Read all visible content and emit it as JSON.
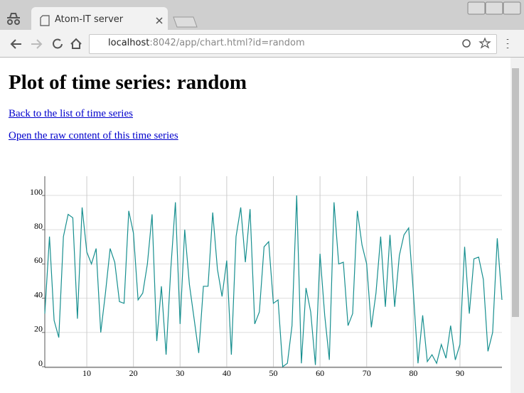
{
  "browser": {
    "tab_title": "Atom-IT server",
    "url_host": "localhost",
    "url_rest": ":8042/app/chart.html?id=random"
  },
  "page": {
    "heading": "Plot of time series: random",
    "links": [
      "Back to the list of time series",
      "Open the raw content of this time series"
    ]
  },
  "chart_data": {
    "type": "line",
    "x": [
      1,
      2,
      3,
      4,
      5,
      6,
      7,
      8,
      9,
      10,
      11,
      12,
      13,
      14,
      15,
      16,
      17,
      18,
      19,
      20,
      21,
      22,
      23,
      24,
      25,
      26,
      27,
      28,
      29,
      30,
      31,
      32,
      33,
      34,
      35,
      36,
      37,
      38,
      39,
      40,
      41,
      42,
      43,
      44,
      45,
      46,
      47,
      48,
      49,
      50,
      51,
      52,
      53,
      54,
      55,
      56,
      57,
      58,
      59,
      60,
      61,
      62,
      63,
      64,
      65,
      66,
      67,
      68,
      69,
      70,
      71,
      72,
      73,
      74,
      75,
      76,
      77,
      78,
      79,
      80,
      81,
      82,
      83,
      84,
      85,
      86,
      87,
      88,
      89,
      90,
      91,
      92,
      93,
      94,
      95,
      96,
      97,
      98,
      99
    ],
    "values": [
      31,
      76,
      27,
      17,
      76,
      89,
      87,
      28,
      93,
      67,
      60,
      69,
      20,
      43,
      69,
      61,
      38,
      37,
      91,
      78,
      39,
      43,
      60,
      89,
      15,
      47,
      7,
      57,
      96,
      25,
      80,
      48,
      28,
      8,
      47,
      47,
      90,
      57,
      41,
      62,
      7,
      76,
      93,
      61,
      92,
      25,
      32,
      70,
      73,
      37,
      39,
      0,
      2,
      24,
      100,
      2,
      46,
      32,
      1,
      66,
      30,
      4,
      96,
      60,
      61,
      24,
      31,
      91,
      71,
      60,
      23,
      43,
      76,
      35,
      77,
      35,
      65,
      77,
      81,
      44,
      2,
      30,
      3,
      7,
      2,
      13,
      5,
      24,
      4,
      13,
      70,
      31,
      63,
      64,
      51,
      9,
      20,
      75,
      39
    ],
    "color": "#178f8f",
    "xlim": [
      1,
      99
    ],
    "xticks": [
      10,
      20,
      30,
      40,
      50,
      60,
      70,
      80,
      90
    ],
    "ylim": [
      0,
      109
    ],
    "yticks": [
      0,
      20,
      40,
      60,
      80,
      100
    ],
    "grid": true
  }
}
